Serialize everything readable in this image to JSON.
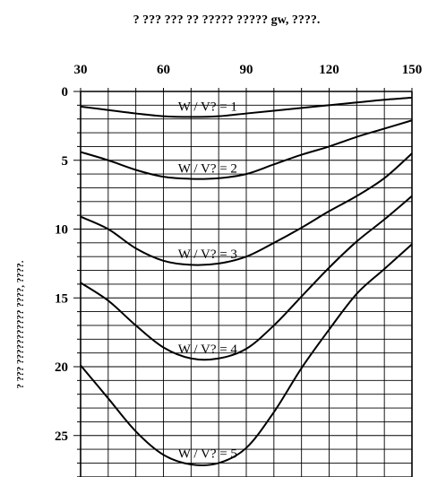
{
  "chart_data": {
    "type": "line",
    "title": "? ??? ??? ?? ????? ????? gw, ????.",
    "xlabel": "",
    "ylabel": "? ??? ??????????? ????, ????.",
    "xlim": [
      30,
      150
    ],
    "ylim": [
      0,
      28
    ],
    "y_inverted": true,
    "x_axis_position": "top",
    "grid": true,
    "x_ticks": [
      30,
      60,
      90,
      120,
      150
    ],
    "y_ticks": [
      0,
      5,
      10,
      15,
      20,
      25
    ],
    "series": [
      {
        "name": "W / V? = 1",
        "x": [
          30,
          40,
          50,
          60,
          70,
          80,
          90,
          100,
          110,
          120,
          130,
          140,
          150
        ],
        "y": [
          1.1,
          1.35,
          1.6,
          1.8,
          1.85,
          1.8,
          1.6,
          1.4,
          1.2,
          1.0,
          0.8,
          0.6,
          0.45
        ]
      },
      {
        "name": "W / V? = 2",
        "x": [
          30,
          40,
          50,
          60,
          70,
          80,
          90,
          100,
          110,
          120,
          130,
          140,
          150
        ],
        "y": [
          4.4,
          5.0,
          5.7,
          6.2,
          6.35,
          6.3,
          6.0,
          5.3,
          4.6,
          4.0,
          3.3,
          2.7,
          2.1
        ]
      },
      {
        "name": "W / V? = 3",
        "x": [
          30,
          40,
          50,
          60,
          70,
          80,
          90,
          100,
          110,
          120,
          130,
          140,
          150
        ],
        "y": [
          9.1,
          10.0,
          11.4,
          12.3,
          12.6,
          12.5,
          12.0,
          11.0,
          9.9,
          8.7,
          7.6,
          6.3,
          4.5
        ]
      },
      {
        "name": "W / V? = 4",
        "x": [
          30,
          40,
          50,
          60,
          70,
          80,
          90,
          100,
          110,
          120,
          130,
          140,
          150
        ],
        "y": [
          13.9,
          15.2,
          17.0,
          18.6,
          19.4,
          19.4,
          18.7,
          17.0,
          14.9,
          12.8,
          10.9,
          9.3,
          7.6
        ]
      },
      {
        "name": "W / V? = 5",
        "x": [
          30,
          40,
          50,
          60,
          70,
          80,
          90,
          100,
          110,
          120,
          130,
          140,
          150
        ],
        "y": [
          19.9,
          22.3,
          24.7,
          26.4,
          27.1,
          27.0,
          25.9,
          23.3,
          20.1,
          17.3,
          14.7,
          12.9,
          11.1
        ]
      }
    ]
  }
}
